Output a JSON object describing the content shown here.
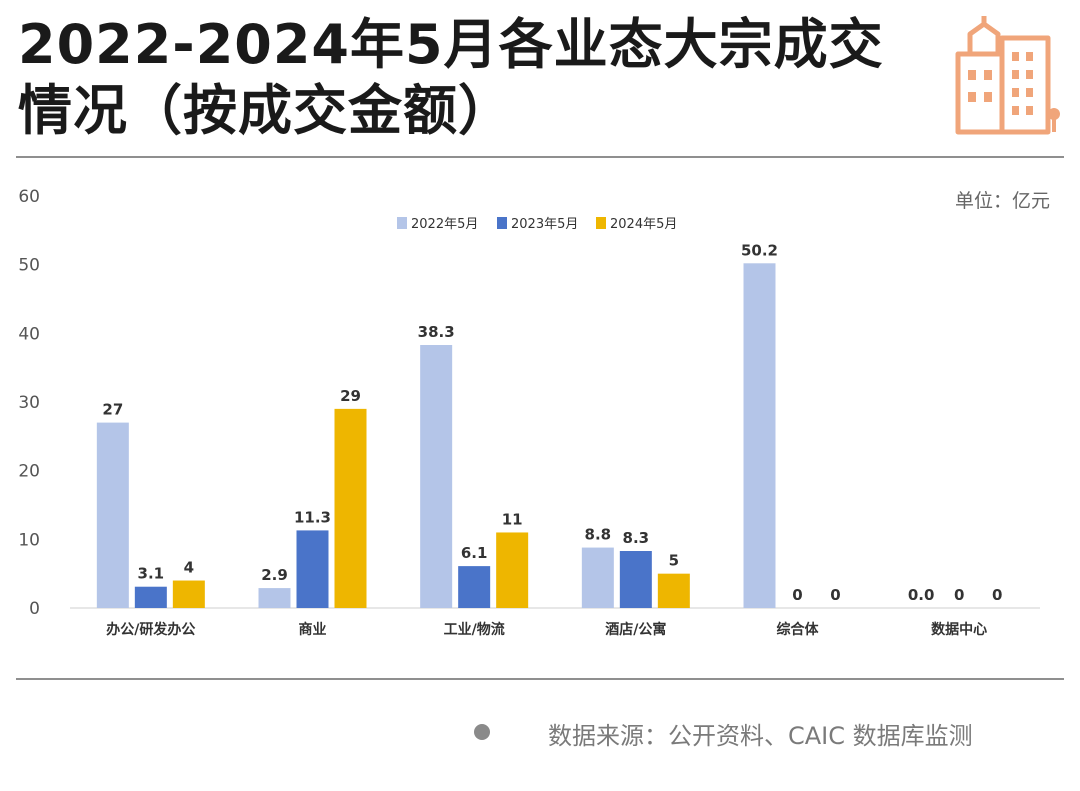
{
  "title": "2022-2024年5月各业态大宗成交情况（按成交金额）",
  "unit": "单位：亿元",
  "source": "数据来源：公开资料、CAIC 数据库监测",
  "icons": {
    "header": "building-icon",
    "source": "bullet-dot-icon"
  },
  "colors": {
    "accent": "#f0a57a",
    "s2022": "#b4c5e8",
    "s2023": "#4a74c9",
    "s2024": "#eeb600"
  },
  "chart_data": {
    "type": "bar",
    "title": "2022-2024年5月各业态大宗成交情况（按成交金额）",
    "ylabel": "",
    "xlabel": "",
    "ylim": [
      0,
      60
    ],
    "yticks": [
      0,
      10,
      20,
      30,
      40,
      50,
      60
    ],
    "grid": false,
    "legend": "top-center",
    "categories": [
      "办公/研发办公",
      "商业",
      "工业/物流",
      "酒店/公寓",
      "综合体",
      "数据中心"
    ],
    "series": [
      {
        "name": "2022年5月",
        "color": "#b4c5e8",
        "values": [
          27,
          2.9,
          38.3,
          8.8,
          50.2,
          0
        ],
        "labels": [
          "27",
          "2.9",
          "38.3",
          "8.8",
          "50.2",
          "0.0"
        ]
      },
      {
        "name": "2023年5月",
        "color": "#4a74c9",
        "values": [
          3.1,
          11.3,
          6.1,
          8.3,
          0,
          0
        ],
        "labels": [
          "3.1",
          "11.3",
          "6.1",
          "8.3",
          "0",
          "0"
        ]
      },
      {
        "name": "2024年5月",
        "color": "#eeb600",
        "values": [
          4,
          29,
          11,
          5,
          0,
          0
        ],
        "labels": [
          "4",
          "29",
          "11",
          "5",
          "0",
          "0"
        ]
      }
    ]
  }
}
